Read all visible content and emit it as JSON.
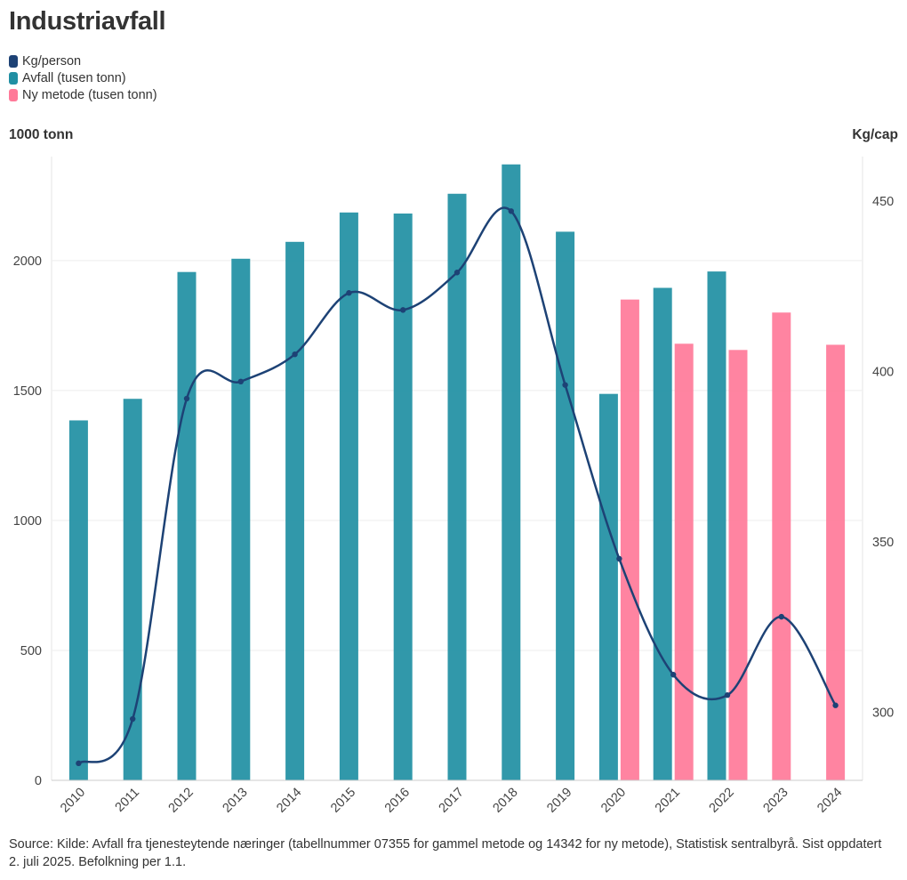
{
  "chart_data": {
    "type": "bar",
    "title": "Industriavfall",
    "ylabel_left": "1000 tonn",
    "ylabel_right": "Kg/cap",
    "categories": [
      "2010",
      "2011",
      "2012",
      "2013",
      "2014",
      "2015",
      "2016",
      "2017",
      "2018",
      "2019",
      "2020",
      "2021",
      "2022",
      "2023",
      "2024"
    ],
    "series": [
      {
        "name": "Avfall (tusen tonn)",
        "kind": "bar",
        "axis": "left",
        "color": "#208fa3",
        "values": [
          1385,
          1468,
          1956,
          2007,
          2072,
          2185,
          2181,
          2257,
          2370,
          2111,
          1487,
          1895,
          1958,
          null,
          null
        ]
      },
      {
        "name": "Ny metode (tusen tonn)",
        "kind": "bar",
        "axis": "left",
        "color": "#ff7a99",
        "values": [
          null,
          null,
          null,
          null,
          null,
          null,
          null,
          null,
          null,
          null,
          1850,
          1680,
          1656,
          1800,
          1676
        ]
      },
      {
        "name": "Kg/person",
        "kind": "line",
        "axis": "right",
        "color": "#1d4275",
        "values": [
          285,
          298,
          392,
          397,
          405,
          423,
          418,
          429,
          447,
          396,
          345,
          311,
          305,
          328,
          302
        ]
      }
    ],
    "ylim_left": [
      0,
      2400
    ],
    "yticks_left": [
      0,
      500,
      1000,
      1500,
      2000
    ],
    "ylim_right": [
      280,
      463
    ],
    "yticks_right": [
      300,
      350,
      400,
      450
    ],
    "legend_position": "top-left",
    "grid": true
  },
  "legend": [
    {
      "label": "Kg/person",
      "color": "#1d4275"
    },
    {
      "label": "Avfall (tusen tonn)",
      "color": "#208fa3"
    },
    {
      "label": "Ny metode (tusen tonn)",
      "color": "#ff7a99"
    }
  ],
  "source_text": "Source: Kilde: Avfall fra tjenesteytende næringer (tabellnummer 07355 for gammel metode og 14342 for ny metode), Statistisk sentralbyrå. Sist oppdatert 2. juli 2025. Befolkning per 1.1."
}
